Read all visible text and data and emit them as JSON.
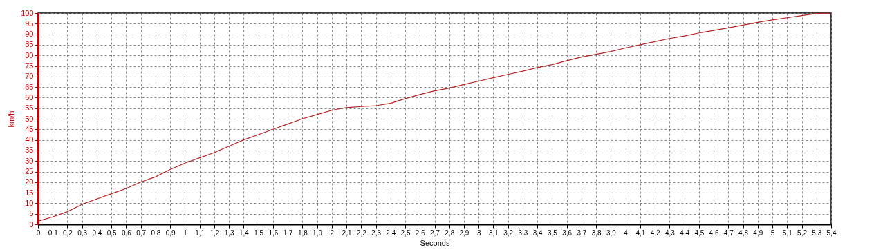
{
  "chart_data": {
    "type": "line",
    "xlabel": "Seconds",
    "ylabel": "km/h",
    "x": [
      0,
      0.1,
      0.2,
      0.3,
      0.4,
      0.5,
      0.6,
      0.7,
      0.8,
      0.9,
      1,
      1.1,
      1.2,
      1.3,
      1.4,
      1.5,
      1.6,
      1.7,
      1.8,
      1.9,
      2,
      2.1,
      2.2,
      2.3,
      2.4,
      2.5,
      2.6,
      2.7,
      2.8,
      2.9,
      3,
      3.1,
      3.2,
      3.3,
      3.4,
      3.5,
      3.6,
      3.7,
      3.8,
      3.9,
      4,
      4.1,
      4.2,
      4.3,
      4.4,
      4.5,
      4.6,
      4.7,
      4.8,
      4.9,
      5,
      5.1,
      5.2,
      5.3,
      5.4
    ],
    "series": [
      {
        "color": "#b22222",
        "values": [
          1.5,
          3.5,
          6,
          9.5,
          12,
          14.5,
          17,
          20,
          22.5,
          26,
          29,
          31.5,
          34,
          37,
          40,
          42.5,
          45,
          47.5,
          50,
          52,
          54,
          55.3,
          55.8,
          56.2,
          57.3,
          59.5,
          61.5,
          63.2,
          64.5,
          66.2,
          67.8,
          69.4,
          71,
          72.5,
          74.2,
          75.6,
          77.5,
          79.2,
          80.5,
          81.8,
          83.5,
          85,
          86.5,
          88,
          89.2,
          90.6,
          91.8,
          93,
          94.3,
          95.6,
          96.8,
          97.8,
          98.8,
          99.8,
          100
        ]
      }
    ],
    "xlim": [
      0,
      5.4
    ],
    "ylim": [
      0,
      100
    ],
    "xticks": [
      0,
      {
        "value": 0.1,
        "label": "0,1"
      },
      {
        "value": 0.2,
        "label": "0,2"
      },
      {
        "value": 0.3,
        "label": "0,3"
      },
      {
        "value": 0.4,
        "label": "0,4"
      },
      {
        "value": 0.5,
        "label": "0,5"
      },
      {
        "value": 0.6,
        "label": "0,6"
      },
      {
        "value": 0.7,
        "label": "0,7"
      },
      {
        "value": 0.8,
        "label": "0,8"
      },
      {
        "value": 0.9,
        "label": "0,9"
      },
      1,
      {
        "value": 1.1,
        "label": "1,1"
      },
      {
        "value": 1.2,
        "label": "1,2"
      },
      {
        "value": 1.3,
        "label": "1,3"
      },
      {
        "value": 1.4,
        "label": "1,4"
      },
      {
        "value": 1.5,
        "label": "1,5"
      },
      {
        "value": 1.6,
        "label": "1,6"
      },
      {
        "value": 1.7,
        "label": "1,7"
      },
      {
        "value": 1.8,
        "label": "1,8"
      },
      {
        "value": 1.9,
        "label": "1,9"
      },
      2,
      {
        "value": 2.1,
        "label": "2,1"
      },
      {
        "value": 2.2,
        "label": "2,2"
      },
      {
        "value": 2.3,
        "label": "2,3"
      },
      {
        "value": 2.4,
        "label": "2,4"
      },
      {
        "value": 2.5,
        "label": "2,5"
      },
      {
        "value": 2.6,
        "label": "2,6"
      },
      {
        "value": 2.7,
        "label": "2,7"
      },
      {
        "value": 2.8,
        "label": "2,8"
      },
      {
        "value": 2.9,
        "label": "2,9"
      },
      3,
      {
        "value": 3.1,
        "label": "3,1"
      },
      {
        "value": 3.2,
        "label": "3,2"
      },
      {
        "value": 3.3,
        "label": "3,3"
      },
      {
        "value": 3.4,
        "label": "3,4"
      },
      {
        "value": 3.5,
        "label": "3,5"
      },
      {
        "value": 3.6,
        "label": "3,6"
      },
      {
        "value": 3.7,
        "label": "3,7"
      },
      {
        "value": 3.8,
        "label": "3,8"
      },
      {
        "value": 3.9,
        "label": "3,9"
      },
      4,
      {
        "value": 4.1,
        "label": "4,1"
      },
      {
        "value": 4.2,
        "label": "4,2"
      },
      {
        "value": 4.3,
        "label": "4,3"
      },
      {
        "value": 4.4,
        "label": "4,4"
      },
      {
        "value": 4.5,
        "label": "4,5"
      },
      {
        "value": 4.6,
        "label": "4,6"
      },
      {
        "value": 4.7,
        "label": "4,7"
      },
      {
        "value": 4.8,
        "label": "4,8"
      },
      {
        "value": 4.9,
        "label": "4,9"
      },
      5,
      {
        "value": 5.1,
        "label": "5,1"
      },
      {
        "value": 5.2,
        "label": "5,2"
      },
      {
        "value": 5.3,
        "label": "5,3"
      },
      {
        "value": 5.4,
        "label": "5,4"
      }
    ],
    "yticks": [
      0,
      5,
      10,
      15,
      20,
      25,
      30,
      35,
      40,
      45,
      50,
      55,
      60,
      65,
      70,
      75,
      80,
      85,
      90,
      95,
      100
    ],
    "grid": true,
    "marker": "none",
    "line_style": "solid"
  }
}
